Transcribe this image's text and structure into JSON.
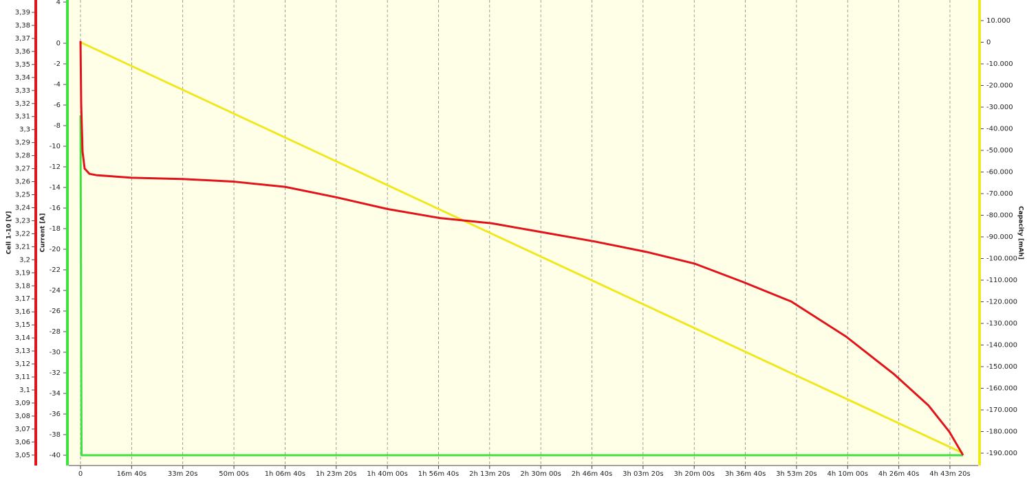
{
  "chart_data": {
    "type": "line",
    "grid": "x",
    "ylabel": "Cell 1-10 [V]",
    "ylim": [
      3.042,
      3.3995
    ],
    "yticks": [
      {
        "value": 3.39,
        "label": "3,39"
      },
      {
        "value": 3.38,
        "label": "3,38"
      },
      {
        "value": 3.37,
        "label": "3,37"
      },
      {
        "value": 3.36,
        "label": "3,36"
      },
      {
        "value": 3.35,
        "label": "3,35"
      },
      {
        "value": 3.34,
        "label": "3,34"
      },
      {
        "value": 3.33,
        "label": "3,33"
      },
      {
        "value": 3.32,
        "label": "3,32"
      },
      {
        "value": 3.31,
        "label": "3,31"
      },
      {
        "value": 3.3,
        "label": "3,3"
      },
      {
        "value": 3.29,
        "label": "3,29"
      },
      {
        "value": 3.28,
        "label": "3,28"
      },
      {
        "value": 3.27,
        "label": "3,27"
      },
      {
        "value": 3.26,
        "label": "3,26"
      },
      {
        "value": 3.25,
        "label": "3,25"
      },
      {
        "value": 3.24,
        "label": "3,24"
      },
      {
        "value": 3.23,
        "label": "3,23"
      },
      {
        "value": 3.22,
        "label": "3,22"
      },
      {
        "value": 3.21,
        "label": "3,21"
      },
      {
        "value": 3.2,
        "label": "3,2"
      },
      {
        "value": 3.19,
        "label": "3,19"
      },
      {
        "value": 3.18,
        "label": "3,18"
      },
      {
        "value": 3.17,
        "label": "3,17"
      },
      {
        "value": 3.16,
        "label": "3,16"
      },
      {
        "value": 3.15,
        "label": "3,15"
      },
      {
        "value": 3.14,
        "label": "3,14"
      },
      {
        "value": 3.13,
        "label": "3,13"
      },
      {
        "value": 3.12,
        "label": "3,12"
      },
      {
        "value": 3.11,
        "label": "3,11"
      },
      {
        "value": 3.1,
        "label": "3,1"
      },
      {
        "value": 3.09,
        "label": "3,09"
      },
      {
        "value": 3.08,
        "label": "3,08"
      },
      {
        "value": 3.07,
        "label": "3,07"
      },
      {
        "value": 3.06,
        "label": "3,06"
      },
      {
        "value": 3.05,
        "label": "3,05"
      }
    ],
    "y3label": "Current [A]",
    "y3lim": [
      -41,
      4.2
    ],
    "y3ticks": [
      4,
      0,
      -2,
      -4,
      -6,
      -8,
      -10,
      -12,
      -14,
      -16,
      -18,
      -20,
      -22,
      -24,
      -26,
      -28,
      -30,
      -32,
      -34,
      -36,
      -38,
      -40
    ],
    "y2label": "Capacity [mAh]",
    "y2lim": [
      -195714,
      19524
    ],
    "y2ticks": [
      {
        "value": 10000,
        "label": "10.000"
      },
      0,
      {
        "value": -10000,
        "label": "-10.000"
      },
      {
        "value": -20000,
        "label": "-20.000"
      },
      {
        "value": -30000,
        "label": "-30.000"
      },
      {
        "value": -40000,
        "label": "-40.000"
      },
      {
        "value": -50000,
        "label": "-50.000"
      },
      {
        "value": -60000,
        "label": "-60.000"
      },
      {
        "value": -70000,
        "label": "-70.000"
      },
      {
        "value": -80000,
        "label": "-80.000"
      },
      {
        "value": -90000,
        "label": "-90.000"
      },
      {
        "value": -100000,
        "label": "-100.000"
      },
      {
        "value": -110000,
        "label": "-110.000"
      },
      {
        "value": -120000,
        "label": "-120.000"
      },
      {
        "value": -130000,
        "label": "-130.000"
      },
      {
        "value": -140000,
        "label": "-140.000"
      },
      {
        "value": -150000,
        "label": "-150.000"
      },
      {
        "value": -160000,
        "label": "-160.000"
      },
      {
        "value": -170000,
        "label": "-170.000"
      },
      {
        "value": -180000,
        "label": "-180.000"
      },
      {
        "value": -190000,
        "label": "-190.000"
      }
    ],
    "xlim": [
      -229,
      17552
    ],
    "xticks": [
      0,
      {
        "value": 1000,
        "label": "16m 40s"
      },
      {
        "value": 2000,
        "label": "33m 20s"
      },
      {
        "value": 3000,
        "label": "50m 00s"
      },
      {
        "value": 4000,
        "label": "1h 06m 40s"
      },
      {
        "value": 5000,
        "label": "1h 23m 20s"
      },
      {
        "value": 6000,
        "label": "1h 40m 00s"
      },
      {
        "value": 7000,
        "label": "1h 56m 40s"
      },
      {
        "value": 8000,
        "label": "2h 13m 20s"
      },
      {
        "value": 9000,
        "label": "2h 30m 00s"
      },
      {
        "value": 10000,
        "label": "2h 46m 40s"
      },
      {
        "value": 11000,
        "label": "3h 03m 20s"
      },
      {
        "value": 12000,
        "label": "3h 20m 00s"
      },
      {
        "value": 13000,
        "label": "3h 36m 40s"
      },
      {
        "value": 14000,
        "label": "3h 53m 20s"
      },
      {
        "value": 15000,
        "label": "4h 10m 00s"
      },
      {
        "value": 16000,
        "label": "4h 26m 40s"
      },
      {
        "value": 17000,
        "label": "4h 43m 20s"
      }
    ],
    "series": [
      {
        "axis": "y3",
        "color": "#3ee23e",
        "x": [
          0,
          20,
          17256
        ],
        "values": [
          -7,
          -40,
          -40
        ]
      },
      {
        "axis": "y2",
        "color": "#f0e81e",
        "x": [
          0,
          17256
        ],
        "values": [
          0,
          -190000
        ]
      },
      {
        "axis": "y",
        "color": "#e0141a",
        "x": [
          0,
          13,
          40,
          81,
          175,
          309,
          1000,
          2000,
          3000,
          4000,
          5000,
          6000,
          7034,
          8043,
          9052,
          10061,
          11070,
          12011,
          12952,
          13894,
          14970,
          15911,
          16584,
          16987,
          17256
        ],
        "values": [
          3.368,
          3.32,
          3.283,
          3.27,
          3.266,
          3.265,
          3.263,
          3.262,
          3.26,
          3.256,
          3.248,
          3.239,
          3.232,
          3.228,
          3.221,
          3.214,
          3.206,
          3.197,
          3.183,
          3.168,
          3.141,
          3.112,
          3.088,
          3.068,
          3.05
        ]
      }
    ]
  }
}
